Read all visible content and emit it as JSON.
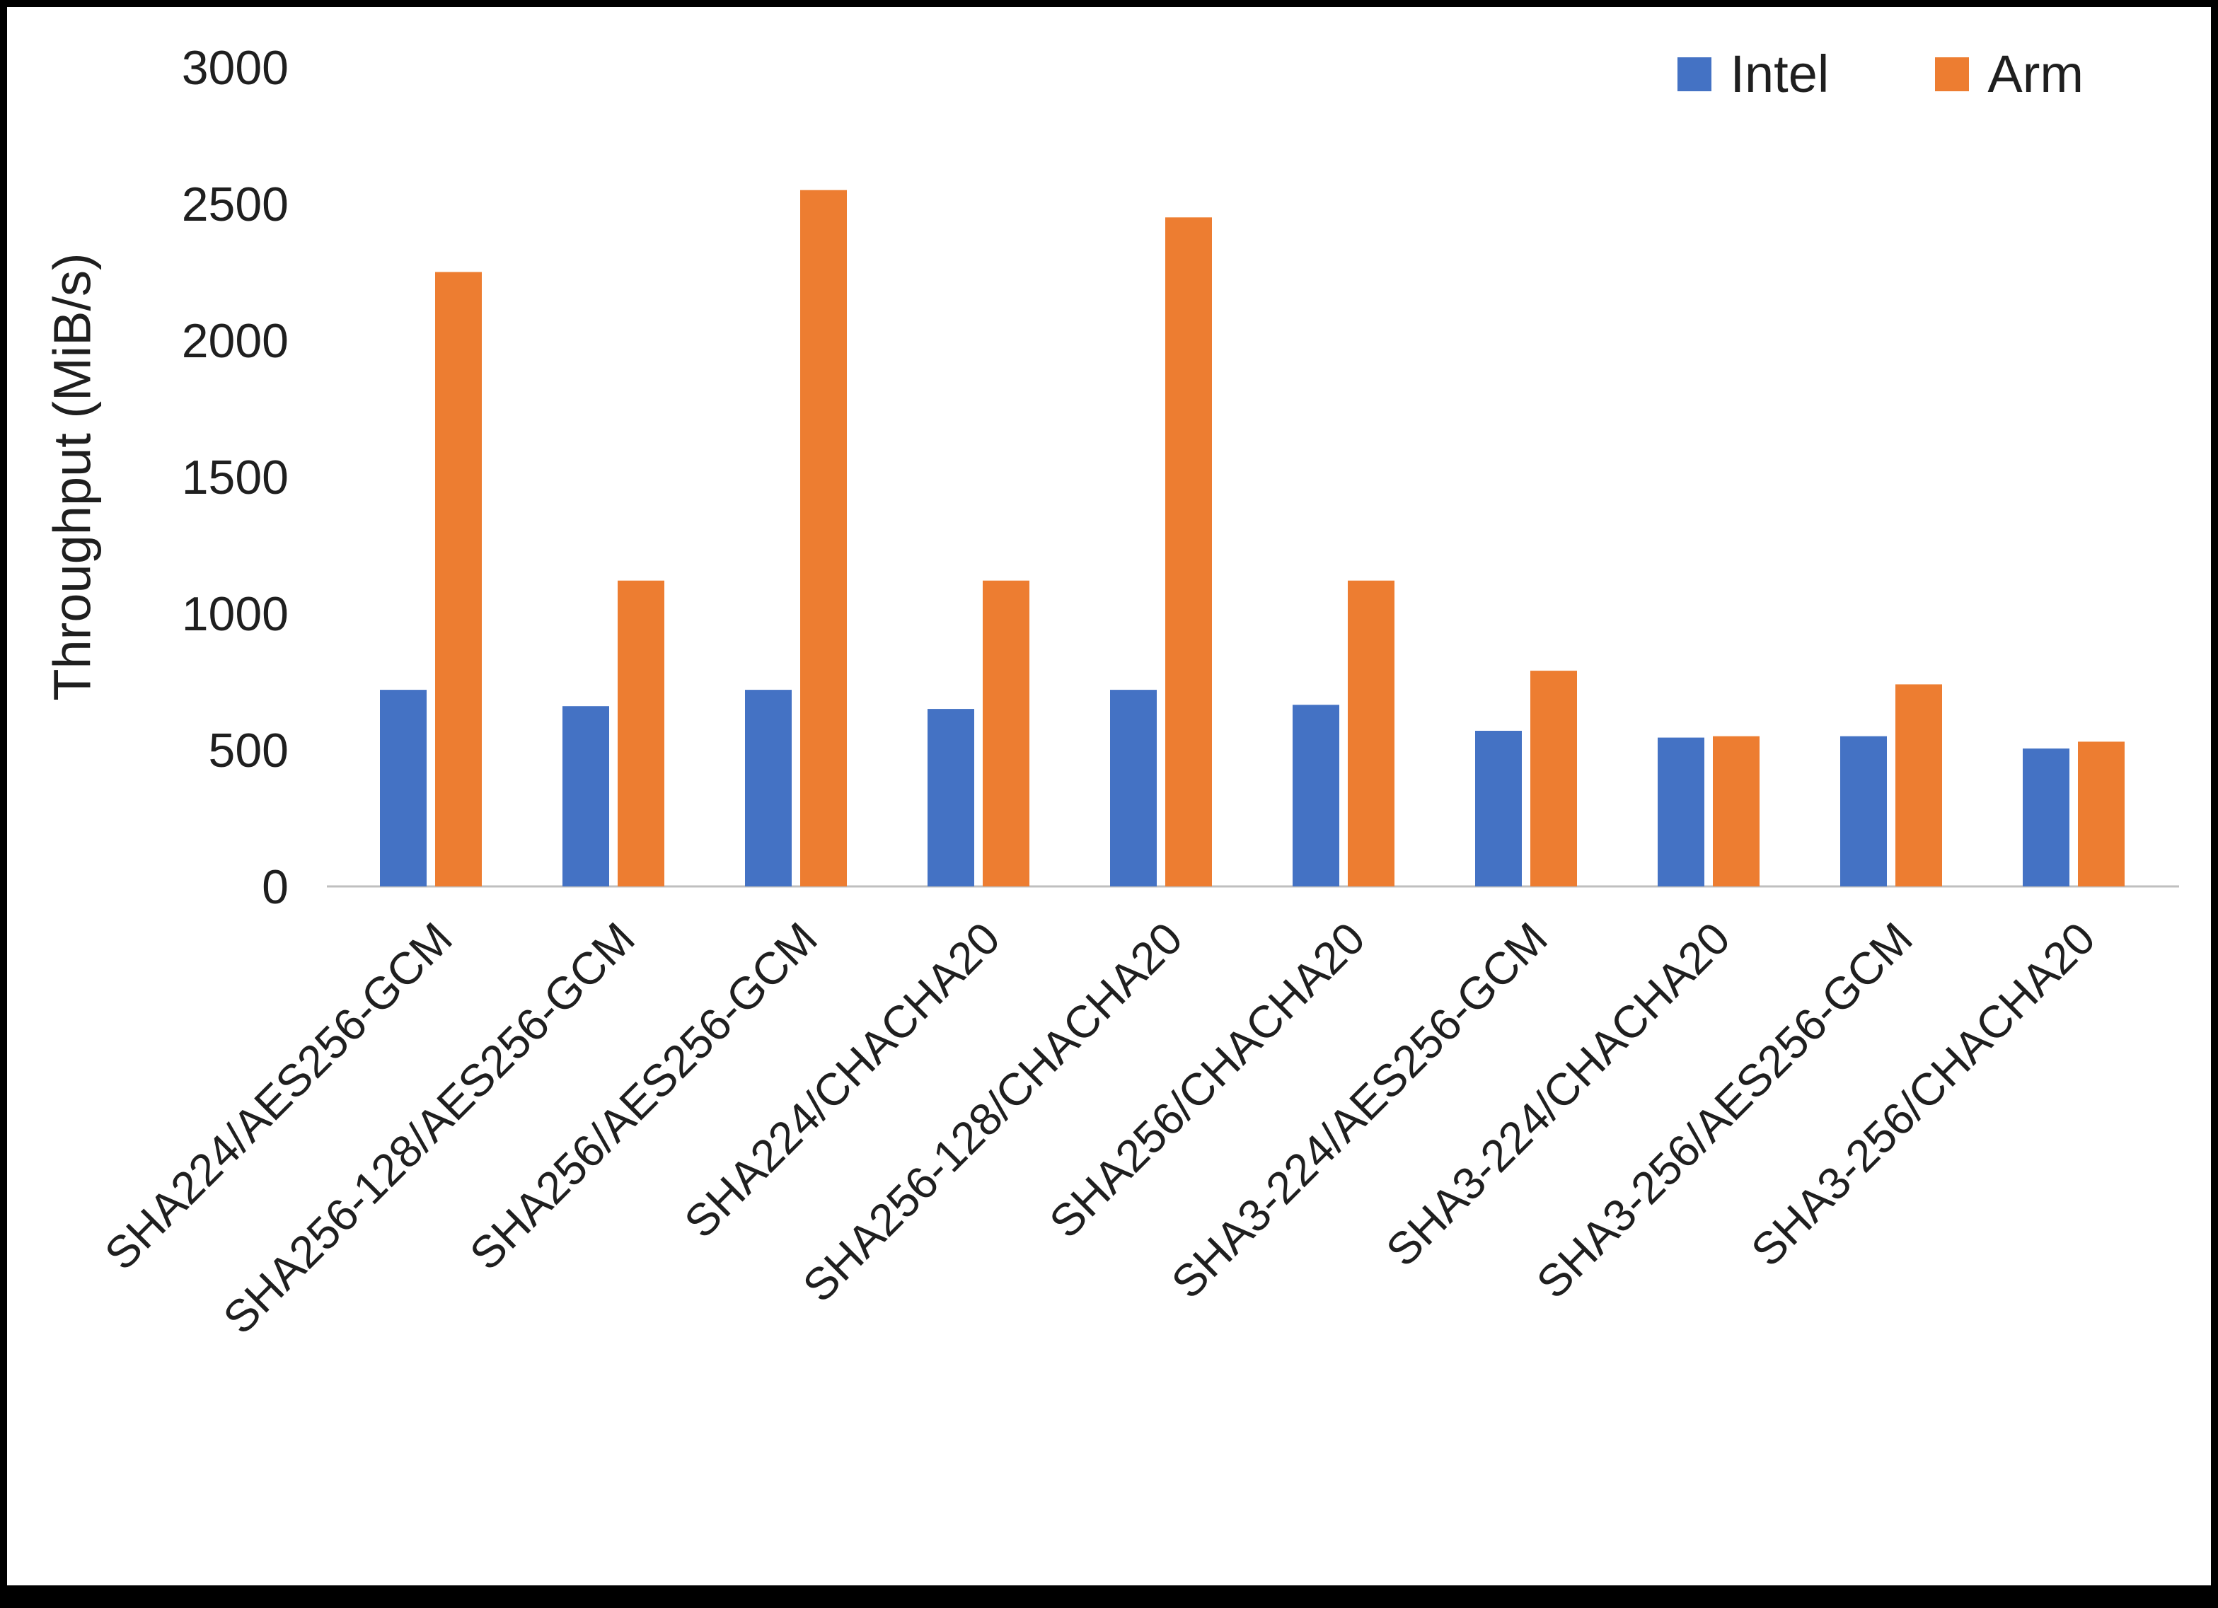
{
  "figure": {
    "background": "#ffffff",
    "border_color": "#000000",
    "text_color": "#1f1f1f",
    "axis_line_color": "#BFBFBF"
  },
  "chart_data": {
    "type": "bar",
    "title": "",
    "xlabel": "",
    "ylabel": "Throughput (MiB/s)",
    "ylim": [
      0,
      3000
    ],
    "yticks": [
      0,
      500,
      1000,
      1500,
      2000,
      2500,
      3000
    ],
    "grid": false,
    "legend_position": "top-right",
    "categories": [
      "SHA224/AES256-GCM",
      "SHA256-128/AES256-GCM",
      "SHA256/AES256-GCM",
      "SHA224/CHACHA20",
      "SHA256-128/CHACHA20",
      "SHA256/CHACHA20",
      "SHA3-224/AES256-GCM",
      "SHA3-224/CHACHA20",
      "SHA3-256/AES256-GCM",
      "SHA3-256/CHACHA20"
    ],
    "series": [
      {
        "name": "Intel",
        "color": "#4472C4",
        "values": [
          720,
          660,
          720,
          650,
          720,
          665,
          570,
          545,
          550,
          505
        ]
      },
      {
        "name": "Arm",
        "color": "#ED7D31",
        "values": [
          2250,
          1120,
          2550,
          1120,
          2450,
          1120,
          790,
          550,
          740,
          530
        ]
      }
    ]
  }
}
